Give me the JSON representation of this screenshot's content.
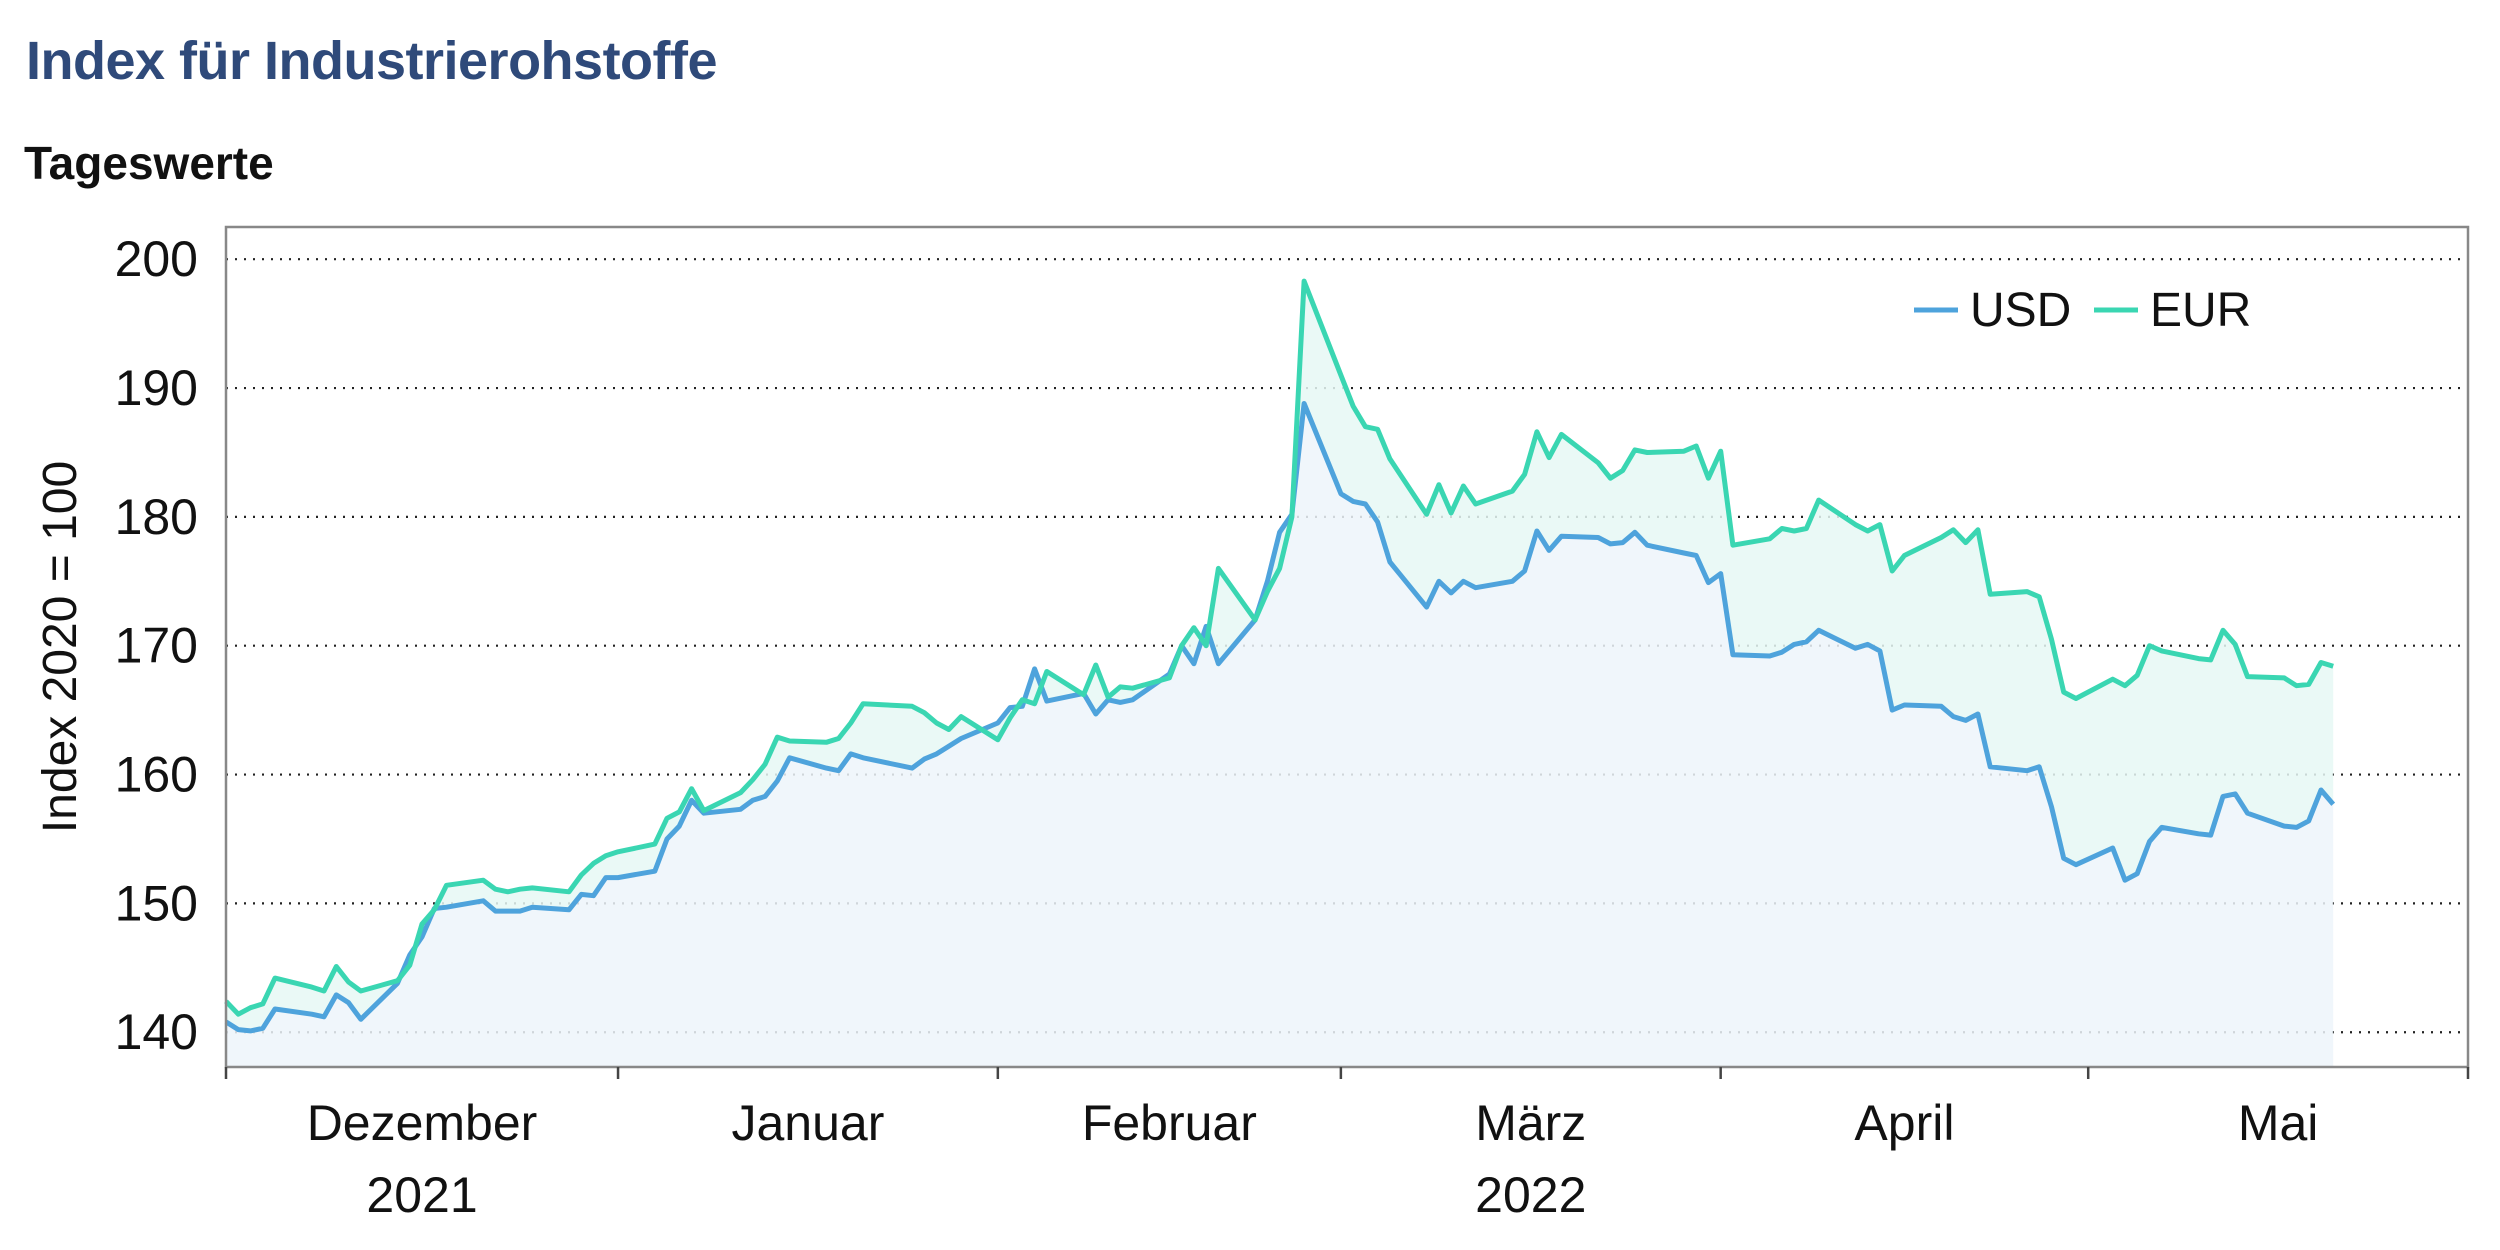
{
  "title": "Index für Industrierohstoffe",
  "subtitle": "Tageswerte",
  "chart_data": {
    "type": "line",
    "ylabel": "Index 2020 = 100",
    "ylim": [
      137.3,
      202.5
    ],
    "yticks": [
      140,
      150,
      160,
      170,
      180,
      190,
      200
    ],
    "grid": "horizontal dotted",
    "legend_placement": "top-right",
    "months": [
      {
        "label": "Dezember",
        "year": "2021"
      },
      {
        "label": "Januar",
        "year": ""
      },
      {
        "label": "Februar",
        "year": ""
      },
      {
        "label": "März",
        "year": "2022"
      },
      {
        "label": "April",
        "year": ""
      },
      {
        "label": "Mai",
        "year": ""
      }
    ],
    "x_start": "2021-11-29",
    "x_end": "2022-05-31",
    "series": [
      {
        "name": "USD",
        "color": "#4ea3dc",
        "points": [
          [
            "2021-11-29",
            140.8
          ],
          [
            "2021-11-30",
            140.2
          ],
          [
            "2021-12-01",
            140.1
          ],
          [
            "2021-12-02",
            140.3
          ],
          [
            "2021-12-03",
            141.8
          ],
          [
            "2021-12-06",
            141.4
          ],
          [
            "2021-12-07",
            141.2
          ],
          [
            "2021-12-08",
            142.9
          ],
          [
            "2021-12-09",
            142.3
          ],
          [
            "2021-12-10",
            141.0
          ],
          [
            "2021-12-13",
            143.8
          ],
          [
            "2021-12-14",
            146.0
          ],
          [
            "2021-12-15",
            147.4
          ],
          [
            "2021-12-16",
            149.6
          ],
          [
            "2021-12-17",
            149.7
          ],
          [
            "2021-12-20",
            150.2
          ],
          [
            "2021-12-21",
            149.4
          ],
          [
            "2021-12-22",
            149.4
          ],
          [
            "2021-12-23",
            149.4
          ],
          [
            "2021-12-24",
            149.7
          ],
          [
            "2021-12-27",
            149.5
          ],
          [
            "2021-12-28",
            150.7
          ],
          [
            "2021-12-29",
            150.6
          ],
          [
            "2021-12-30",
            152.0
          ],
          [
            "2021-12-31",
            152.0
          ],
          [
            "2022-01-03",
            152.5
          ],
          [
            "2022-01-04",
            155.0
          ],
          [
            "2022-01-05",
            156.0
          ],
          [
            "2022-01-06",
            158.0
          ],
          [
            "2022-01-07",
            157.0
          ],
          [
            "2022-01-10",
            157.3
          ],
          [
            "2022-01-11",
            158.0
          ],
          [
            "2022-01-12",
            158.3
          ],
          [
            "2022-01-13",
            159.5
          ],
          [
            "2022-01-14",
            161.3
          ],
          [
            "2022-01-17",
            160.5
          ],
          [
            "2022-01-18",
            160.3
          ],
          [
            "2022-01-19",
            161.6
          ],
          [
            "2022-01-20",
            161.3
          ],
          [
            "2022-01-24",
            160.5
          ],
          [
            "2022-01-25",
            161.2
          ],
          [
            "2022-01-26",
            161.6
          ],
          [
            "2022-01-27",
            162.2
          ],
          [
            "2022-01-28",
            162.8
          ],
          [
            "2022-01-31",
            164.0
          ],
          [
            "2022-02-01",
            165.2
          ],
          [
            "2022-02-02",
            165.3
          ],
          [
            "2022-02-03",
            168.2
          ],
          [
            "2022-02-04",
            165.7
          ],
          [
            "2022-02-07",
            166.3
          ],
          [
            "2022-02-08",
            164.7
          ],
          [
            "2022-02-09",
            165.8
          ],
          [
            "2022-02-10",
            165.6
          ],
          [
            "2022-02-11",
            165.8
          ],
          [
            "2022-02-14",
            167.8
          ],
          [
            "2022-02-15",
            170.0
          ],
          [
            "2022-02-16",
            168.6
          ],
          [
            "2022-02-17",
            171.5
          ],
          [
            "2022-02-18",
            168.6
          ],
          [
            "2022-02-21",
            172.0
          ],
          [
            "2022-02-22",
            175.0
          ],
          [
            "2022-02-23",
            178.8
          ],
          [
            "2022-02-24",
            180.2
          ],
          [
            "2022-02-25",
            188.8
          ],
          [
            "2022-02-28",
            181.8
          ],
          [
            "2022-03-01",
            181.2
          ],
          [
            "2022-03-02",
            181.0
          ],
          [
            "2022-03-03",
            179.6
          ],
          [
            "2022-03-04",
            176.5
          ],
          [
            "2022-03-07",
            173.0
          ],
          [
            "2022-03-08",
            175.0
          ],
          [
            "2022-03-09",
            174.1
          ],
          [
            "2022-03-10",
            175.0
          ],
          [
            "2022-03-11",
            174.5
          ],
          [
            "2022-03-14",
            175.0
          ],
          [
            "2022-03-15",
            175.8
          ],
          [
            "2022-03-16",
            178.9
          ],
          [
            "2022-03-17",
            177.4
          ],
          [
            "2022-03-18",
            178.5
          ],
          [
            "2022-03-21",
            178.4
          ],
          [
            "2022-03-22",
            177.9
          ],
          [
            "2022-03-23",
            178.0
          ],
          [
            "2022-03-24",
            178.8
          ],
          [
            "2022-03-25",
            177.8
          ],
          [
            "2022-03-28",
            177.2
          ],
          [
            "2022-03-29",
            177.0
          ],
          [
            "2022-03-30",
            174.9
          ],
          [
            "2022-03-31",
            175.6
          ],
          [
            "2022-04-01",
            169.3
          ],
          [
            "2022-04-04",
            169.2
          ],
          [
            "2022-04-05",
            169.5
          ],
          [
            "2022-04-06",
            170.1
          ],
          [
            "2022-04-07",
            170.3
          ],
          [
            "2022-04-08",
            171.2
          ],
          [
            "2022-04-11",
            169.8
          ],
          [
            "2022-04-12",
            170.1
          ],
          [
            "2022-04-13",
            169.6
          ],
          [
            "2022-04-14",
            165.0
          ],
          [
            "2022-04-15",
            165.4
          ],
          [
            "2022-04-18",
            165.3
          ],
          [
            "2022-04-19",
            164.5
          ],
          [
            "2022-04-20",
            164.2
          ],
          [
            "2022-04-21",
            164.7
          ],
          [
            "2022-04-22",
            160.6
          ],
          [
            "2022-04-25",
            160.3
          ],
          [
            "2022-04-26",
            160.6
          ],
          [
            "2022-04-27",
            157.5
          ],
          [
            "2022-04-28",
            153.5
          ],
          [
            "2022-04-29",
            153.0
          ],
          [
            "2022-05-02",
            154.3
          ],
          [
            "2022-05-03",
            151.8
          ],
          [
            "2022-05-04",
            152.3
          ],
          [
            "2022-05-05",
            154.8
          ],
          [
            "2022-05-06",
            155.9
          ],
          [
            "2022-05-09",
            155.4
          ],
          [
            "2022-05-10",
            155.3
          ],
          [
            "2022-05-11",
            158.3
          ],
          [
            "2022-05-12",
            158.5
          ],
          [
            "2022-05-13",
            157.0
          ],
          [
            "2022-05-16",
            156.0
          ],
          [
            "2022-05-17",
            155.9
          ],
          [
            "2022-05-18",
            156.4
          ],
          [
            "2022-05-19",
            158.8
          ],
          [
            "2022-05-20",
            157.7
          ]
        ]
      },
      {
        "name": "EUR",
        "color": "#3ad6b2",
        "points": [
          [
            "2021-11-29",
            142.4
          ],
          [
            "2021-11-30",
            141.4
          ],
          [
            "2021-12-01",
            141.9
          ],
          [
            "2021-12-02",
            142.2
          ],
          [
            "2021-12-03",
            144.2
          ],
          [
            "2021-12-06",
            143.5
          ],
          [
            "2021-12-07",
            143.2
          ],
          [
            "2021-12-08",
            145.1
          ],
          [
            "2021-12-09",
            143.9
          ],
          [
            "2021-12-10",
            143.2
          ],
          [
            "2021-12-13",
            144.0
          ],
          [
            "2021-12-14",
            145.2
          ],
          [
            "2021-12-15",
            148.4
          ],
          [
            "2021-12-16",
            149.5
          ],
          [
            "2021-12-17",
            151.4
          ],
          [
            "2021-12-20",
            151.8
          ],
          [
            "2021-12-21",
            151.1
          ],
          [
            "2021-12-22",
            150.9
          ],
          [
            "2021-12-23",
            151.1
          ],
          [
            "2021-12-24",
            151.2
          ],
          [
            "2021-12-27",
            150.9
          ],
          [
            "2021-12-28",
            152.2
          ],
          [
            "2021-12-29",
            153.1
          ],
          [
            "2021-12-30",
            153.7
          ],
          [
            "2021-12-31",
            154.0
          ],
          [
            "2022-01-03",
            154.6
          ],
          [
            "2022-01-04",
            156.6
          ],
          [
            "2022-01-05",
            157.1
          ],
          [
            "2022-01-06",
            158.9
          ],
          [
            "2022-01-07",
            157.2
          ],
          [
            "2022-01-10",
            158.6
          ],
          [
            "2022-01-11",
            159.6
          ],
          [
            "2022-01-12",
            160.8
          ],
          [
            "2022-01-13",
            162.9
          ],
          [
            "2022-01-14",
            162.6
          ],
          [
            "2022-01-17",
            162.5
          ],
          [
            "2022-01-18",
            162.8
          ],
          [
            "2022-01-19",
            164.0
          ],
          [
            "2022-01-20",
            165.5
          ],
          [
            "2022-01-24",
            165.3
          ],
          [
            "2022-01-25",
            164.8
          ],
          [
            "2022-01-26",
            164.0
          ],
          [
            "2022-01-27",
            163.5
          ],
          [
            "2022-01-28",
            164.5
          ],
          [
            "2022-01-31",
            162.7
          ],
          [
            "2022-02-01",
            164.4
          ],
          [
            "2022-02-02",
            165.8
          ],
          [
            "2022-02-03",
            165.5
          ],
          [
            "2022-02-04",
            168.0
          ],
          [
            "2022-02-07",
            166.2
          ],
          [
            "2022-02-08",
            168.5
          ],
          [
            "2022-02-09",
            166.0
          ],
          [
            "2022-02-10",
            166.8
          ],
          [
            "2022-02-11",
            166.7
          ],
          [
            "2022-02-14",
            167.5
          ],
          [
            "2022-02-15",
            170.0
          ],
          [
            "2022-02-16",
            171.4
          ],
          [
            "2022-02-17",
            170.0
          ],
          [
            "2022-02-18",
            176.0
          ],
          [
            "2022-02-21",
            172.0
          ],
          [
            "2022-02-22",
            174.2
          ],
          [
            "2022-02-23",
            176.0
          ],
          [
            "2022-02-24",
            180.0
          ],
          [
            "2022-02-25",
            198.3
          ],
          [
            "2022-02-28",
            191.0
          ],
          [
            "2022-03-01",
            188.6
          ],
          [
            "2022-03-02",
            187.0
          ],
          [
            "2022-03-03",
            186.8
          ],
          [
            "2022-03-04",
            184.5
          ],
          [
            "2022-03-07",
            180.2
          ],
          [
            "2022-03-08",
            182.5
          ],
          [
            "2022-03-09",
            180.3
          ],
          [
            "2022-03-10",
            182.4
          ],
          [
            "2022-03-11",
            181.0
          ],
          [
            "2022-03-14",
            182.0
          ],
          [
            "2022-03-15",
            183.3
          ],
          [
            "2022-03-16",
            186.6
          ],
          [
            "2022-03-17",
            184.6
          ],
          [
            "2022-03-18",
            186.4
          ],
          [
            "2022-03-21",
            184.2
          ],
          [
            "2022-03-22",
            183.0
          ],
          [
            "2022-03-23",
            183.6
          ],
          [
            "2022-03-24",
            185.2
          ],
          [
            "2022-03-25",
            185.0
          ],
          [
            "2022-03-28",
            185.1
          ],
          [
            "2022-03-29",
            185.5
          ],
          [
            "2022-03-30",
            183.0
          ],
          [
            "2022-03-31",
            185.1
          ],
          [
            "2022-04-01",
            177.8
          ],
          [
            "2022-04-04",
            178.3
          ],
          [
            "2022-04-05",
            179.1
          ],
          [
            "2022-04-06",
            178.9
          ],
          [
            "2022-04-07",
            179.1
          ],
          [
            "2022-04-08",
            181.3
          ],
          [
            "2022-04-11",
            179.4
          ],
          [
            "2022-04-12",
            178.9
          ],
          [
            "2022-04-13",
            179.4
          ],
          [
            "2022-04-14",
            175.8
          ],
          [
            "2022-04-15",
            177.0
          ],
          [
            "2022-04-18",
            178.4
          ],
          [
            "2022-04-19",
            179.0
          ],
          [
            "2022-04-20",
            178.0
          ],
          [
            "2022-04-21",
            179.0
          ],
          [
            "2022-04-22",
            174.0
          ],
          [
            "2022-04-25",
            174.2
          ],
          [
            "2022-04-26",
            173.8
          ],
          [
            "2022-04-27",
            170.5
          ],
          [
            "2022-04-28",
            166.4
          ],
          [
            "2022-04-29",
            165.9
          ],
          [
            "2022-05-02",
            167.4
          ],
          [
            "2022-05-03",
            166.9
          ],
          [
            "2022-05-04",
            167.7
          ],
          [
            "2022-05-05",
            170.0
          ],
          [
            "2022-05-06",
            169.6
          ],
          [
            "2022-05-09",
            169.0
          ],
          [
            "2022-05-10",
            168.9
          ],
          [
            "2022-05-11",
            171.2
          ],
          [
            "2022-05-12",
            170.1
          ],
          [
            "2022-05-13",
            167.6
          ],
          [
            "2022-05-16",
            167.5
          ],
          [
            "2022-05-17",
            166.9
          ],
          [
            "2022-05-18",
            167.0
          ],
          [
            "2022-05-19",
            168.7
          ],
          [
            "2022-05-20",
            168.4
          ]
        ]
      }
    ]
  }
}
